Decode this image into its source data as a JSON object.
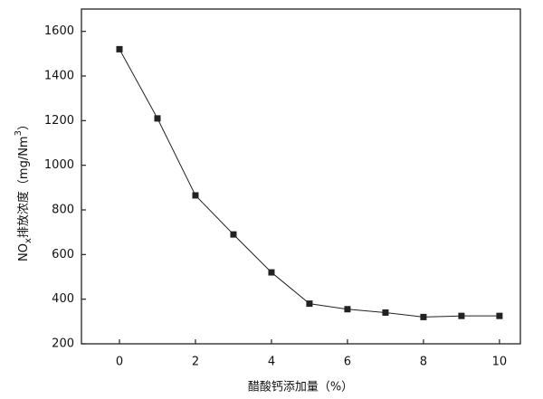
{
  "chart_data": {
    "type": "line",
    "x_label": "醋酸钙添加量（%）",
    "y_label_parts": [
      "NO",
      "x",
      "排放浓度（mg/Nm",
      "3",
      "）"
    ],
    "x": [
      0,
      1,
      2,
      3,
      4,
      5,
      6,
      7,
      8,
      9,
      10
    ],
    "series": [
      {
        "color": "#222222",
        "values": [
          1520,
          1210,
          865,
          690,
          520,
          380,
          355,
          340,
          320,
          325,
          325
        ]
      }
    ],
    "xlim": [
      -1,
      10.55
    ],
    "xticks": [
      0,
      2,
      4,
      6,
      8,
      10
    ],
    "ylim": [
      200,
      1700
    ],
    "yticks": [
      200,
      400,
      600,
      800,
      1000,
      1200,
      1400,
      1600
    ],
    "grid": false
  }
}
